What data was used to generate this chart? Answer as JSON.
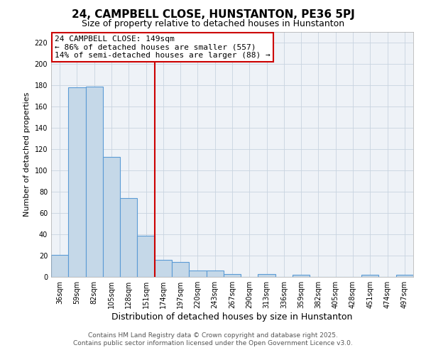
{
  "title": "24, CAMPBELL CLOSE, HUNSTANTON, PE36 5PJ",
  "subtitle": "Size of property relative to detached houses in Hunstanton",
  "xlabel": "Distribution of detached houses by size in Hunstanton",
  "ylabel": "Number of detached properties",
  "bar_labels": [
    "36sqm",
    "59sqm",
    "82sqm",
    "105sqm",
    "128sqm",
    "151sqm",
    "174sqm",
    "197sqm",
    "220sqm",
    "243sqm",
    "267sqm",
    "290sqm",
    "313sqm",
    "336sqm",
    "359sqm",
    "382sqm",
    "405sqm",
    "428sqm",
    "451sqm",
    "474sqm",
    "497sqm"
  ],
  "bar_values": [
    21,
    178,
    179,
    113,
    74,
    39,
    16,
    14,
    6,
    6,
    3,
    0,
    3,
    0,
    2,
    0,
    0,
    0,
    2,
    0,
    2
  ],
  "bar_color": "#c5d8e8",
  "bar_edge_color": "#5b9bd5",
  "ylim": [
    0,
    230
  ],
  "yticks": [
    0,
    20,
    40,
    60,
    80,
    100,
    120,
    140,
    160,
    180,
    200,
    220
  ],
  "vline_color": "#cc0000",
  "vline_x": 5.5,
  "annotation_title": "24 CAMPBELL CLOSE: 149sqm",
  "annotation_line1": "← 86% of detached houses are smaller (557)",
  "annotation_line2": "14% of semi-detached houses are larger (88) →",
  "footer1": "Contains HM Land Registry data © Crown copyright and database right 2025.",
  "footer2": "Contains public sector information licensed under the Open Government Licence v3.0.",
  "background_color": "#eef2f7",
  "grid_color": "#c8d4e0",
  "title_fontsize": 11,
  "subtitle_fontsize": 9,
  "xlabel_fontsize": 9,
  "ylabel_fontsize": 8,
  "tick_fontsize": 7,
  "annotation_fontsize": 8,
  "footer_fontsize": 6.5
}
